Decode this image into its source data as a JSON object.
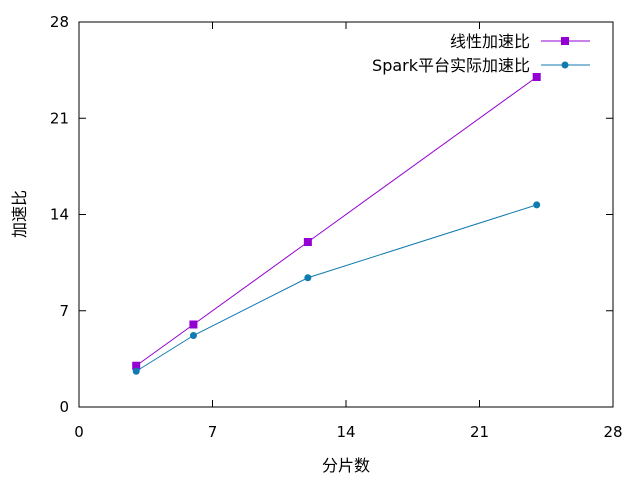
{
  "chart_data": {
    "type": "line",
    "title": "",
    "xlabel": "分片数",
    "ylabel": "加速比",
    "xlim": [
      0,
      28
    ],
    "ylim": [
      0,
      28
    ],
    "xticks": [
      0,
      7,
      14,
      21,
      28
    ],
    "yticks": [
      0,
      7,
      14,
      21,
      28
    ],
    "grid": false,
    "legend_position": "top-right",
    "series": [
      {
        "name": "线性加速比",
        "color": "#9400d3",
        "marker": "square",
        "x": [
          3,
          6,
          12,
          24
        ],
        "y": [
          3,
          6,
          12,
          24
        ]
      },
      {
        "name": "Spark平台实际加速比",
        "color": "#0f7bb0",
        "marker": "circle",
        "x": [
          3,
          6,
          12,
          24
        ],
        "y": [
          2.6,
          5.2,
          9.4,
          14.7
        ]
      }
    ]
  }
}
